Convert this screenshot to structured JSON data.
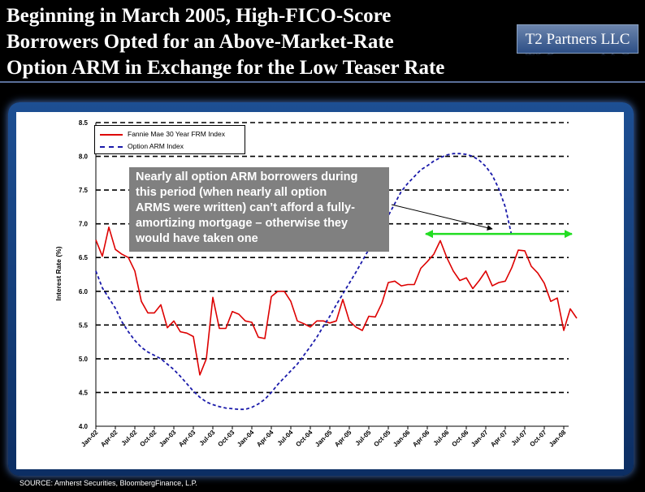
{
  "header": {
    "title_lines": [
      "Beginning in March 2005, High-FICO-Score",
      "Borrowers Opted for an Above-Market-Rate",
      "Option ARM in Exchange for the Low Teaser Rate"
    ],
    "logo_text": "T2 Partners LLC"
  },
  "callout": {
    "lines": [
      "Nearly all option ARM borrowers during",
      "this period (when nearly all option",
      "ARMS were written) can’t afford a fully-",
      "amortizing mortgage – otherwise they",
      "would have taken one"
    ]
  },
  "footer": {
    "source": "SOURCE: Amherst Securities, BloombergFinance, L.P."
  },
  "colors": {
    "frm": "#dd0000",
    "arm": "#1a1aaa",
    "highlight": "#22dd22",
    "panel": "#1d4f93"
  },
  "chart_data": {
    "type": "line",
    "title": "",
    "xlabel": "",
    "ylabel": "Interest Rate (%)",
    "ylim": [
      4.0,
      8.5
    ],
    "yticks": [
      "4.0",
      "4.5",
      "5.0",
      "5.5",
      "6.0",
      "6.5",
      "7.0",
      "7.5",
      "8.0",
      "8.5"
    ],
    "x_ticks": [
      "Jan-02",
      "Apr-02",
      "Jul-02",
      "Oct-02",
      "Jan-03",
      "Apr-03",
      "Jul-03",
      "Oct-03",
      "Jan-04",
      "Apr-04",
      "Jul-04",
      "Oct-04",
      "Jan-05",
      "Apr-05",
      "Jul-05",
      "Oct-05",
      "Jan-06",
      "Apr-06",
      "Jul-06",
      "Oct-06",
      "Jan-07",
      "Apr-07",
      "Jul-07",
      "Oct-07",
      "Jan-08"
    ],
    "grid": "horizontal-dashed",
    "legend": [
      {
        "label": "Fannie Mae 30 Year FRM Index",
        "style": "solid",
        "color": "#dd0000"
      },
      {
        "label": "Option ARM Index",
        "style": "dashed",
        "color": "#1a1aaa"
      }
    ],
    "series": [
      {
        "name": "Fannie Mae 30 Year FRM Index",
        "x_start": "Jan-02",
        "frequency": "monthly",
        "values": [
          6.76,
          6.52,
          6.95,
          6.62,
          6.55,
          6.5,
          6.3,
          5.85,
          5.68,
          5.68,
          5.8,
          5.46,
          5.56,
          5.4,
          5.38,
          5.33,
          4.76,
          5.0,
          5.91,
          5.45,
          5.45,
          5.7,
          5.66,
          5.56,
          5.54,
          5.32,
          5.3,
          5.92,
          6.0,
          6.0,
          5.85,
          5.56,
          5.52,
          5.47,
          5.56,
          5.56,
          5.53,
          5.56,
          5.88,
          5.56,
          5.47,
          5.42,
          5.63,
          5.62,
          5.82,
          6.13,
          6.15,
          6.08,
          6.1,
          6.1,
          6.34,
          6.44,
          6.55,
          6.75,
          6.5,
          6.3,
          6.16,
          6.2,
          6.04,
          6.16,
          6.3,
          6.08,
          6.13,
          6.15,
          6.35,
          6.61,
          6.6,
          6.37,
          6.27,
          6.12,
          5.85,
          5.9,
          5.42,
          5.74,
          5.6
        ]
      },
      {
        "name": "Option ARM Index",
        "x_start": "Jan-02",
        "frequency": "monthly",
        "values": [
          6.3,
          6.05,
          5.9,
          5.75,
          5.55,
          5.4,
          5.27,
          5.17,
          5.1,
          5.05,
          5.0,
          4.92,
          4.84,
          4.74,
          4.63,
          4.52,
          4.43,
          4.36,
          4.32,
          4.29,
          4.27,
          4.26,
          4.25,
          4.25,
          4.28,
          4.33,
          4.4,
          4.5,
          4.62,
          4.72,
          4.82,
          4.92,
          5.05,
          5.18,
          5.32,
          5.48,
          5.63,
          5.8,
          5.96,
          6.12,
          6.28,
          6.45,
          6.62,
          6.78,
          6.95,
          7.12,
          7.3,
          7.48,
          7.6,
          7.7,
          7.8,
          7.86,
          7.93,
          7.98,
          8.02,
          8.04,
          8.04,
          8.03,
          8.0,
          7.94,
          7.85,
          7.72,
          7.52,
          7.25,
          6.82
        ]
      }
    ],
    "annotations": [
      {
        "type": "double-arrow",
        "from": "Apr-06",
        "to": "Jan-08",
        "y": 6.85,
        "color": "#22dd22"
      }
    ]
  }
}
